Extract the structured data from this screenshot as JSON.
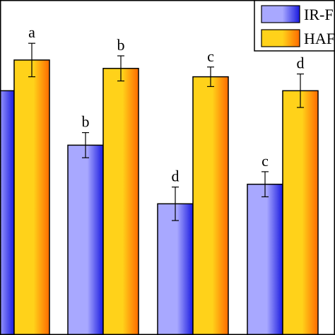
{
  "chart_data": {
    "type": "bar",
    "categories": [
      "",
      "",
      "",
      ""
    ],
    "series": [
      {
        "name": "IR-F",
        "color_light": "#a8a8ff",
        "color_dark": "#1a1ae0",
        "values": [
          55.5,
          51.6,
          47.4,
          48.8
        ],
        "errors": [
          0,
          0.9,
          1.2,
          0.9
        ],
        "labels": [
          "",
          "b",
          "d",
          "c"
        ]
      },
      {
        "name": "HAF",
        "color_light": "#ffd21a",
        "color_dark": "#ff6a00",
        "values": [
          57.7,
          57.1,
          56.5,
          55.5
        ],
        "errors": [
          1.2,
          0.9,
          0.7,
          1.2
        ],
        "labels": [
          "a",
          "b",
          "c",
          "d"
        ]
      }
    ],
    "legend_position": "top-right",
    "frame": "box",
    "ylim": [
      38,
      62
    ]
  }
}
